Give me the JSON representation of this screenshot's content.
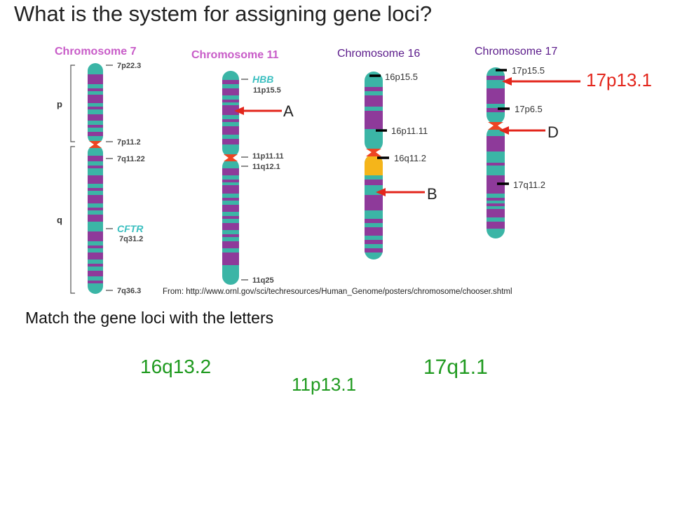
{
  "title": "What is the system for assigning gene loci?",
  "instruction": "Match the gene loci with the letters",
  "credit": "From: http://www.ornl.gov/sci/techresources/Human_Genome/posters/chromosome/chooser.shtml",
  "colors": {
    "teal": "#3bb5a6",
    "purple": "#8e3a9a",
    "centromere": "#ee4422",
    "heterochromatin": "#f5b51a",
    "arrow": "#e3261c",
    "answer_green": "#1f9a1f",
    "ornl_title": "#c85cc8",
    "dark_title": "#5a1a8a"
  },
  "chromosomes": {
    "chr7": {
      "title": "Chromosome 7",
      "arm_p": "p",
      "arm_q": "q",
      "labels": [
        "7p22.3",
        "7p11.2",
        "7q11.22",
        "7q31.2",
        "7q36.3"
      ],
      "gene": "CFTR"
    },
    "chr11": {
      "title": "Chromosome 11",
      "labels": [
        "11p15.5",
        "11p11.11",
        "11q12.1",
        "11q25"
      ],
      "gene": "HBB"
    },
    "chr16": {
      "title": "Chromosome 16",
      "labels": [
        "16p15.5",
        "16p11.11",
        "16q11.2"
      ]
    },
    "chr17": {
      "title": "Chromosome 17",
      "labels": [
        "17p15.5",
        "17p6.5",
        "17q11.2"
      ]
    }
  },
  "markers": {
    "a": "A",
    "b": "B",
    "d": "D",
    "red_locus": "17p13.1"
  },
  "choices": [
    "16q13.2",
    "11p13.1",
    "17q1.1"
  ]
}
